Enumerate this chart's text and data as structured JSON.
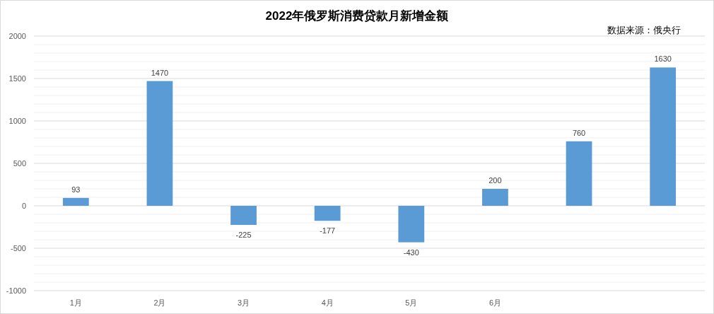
{
  "chart_data": {
    "type": "bar",
    "title": "2022年俄罗斯消费贷款月新增金额",
    "annotations": [
      "数据来源：俄央行"
    ],
    "categories": [
      "1月",
      "2月",
      "3月",
      "4月",
      "5月",
      "6月",
      null,
      null
    ],
    "values": [
      93,
      1470,
      -225,
      -177,
      -430,
      200,
      760,
      1630
    ],
    "color": "#5b9bd5",
    "data_labels": true,
    "grid": "y",
    "ylim": [
      -1000,
      2000
    ],
    "yticks": [
      -1000,
      {
        "value": -900,
        "label": null
      },
      {
        "value": -800,
        "label": null
      },
      {
        "value": -700,
        "label": null
      },
      {
        "value": -600,
        "label": null
      },
      -500,
      {
        "value": -400,
        "label": null
      },
      {
        "value": -300,
        "label": null
      },
      {
        "value": -200,
        "label": null
      },
      {
        "value": -100,
        "label": null
      },
      0,
      {
        "value": 100,
        "label": null
      },
      {
        "value": 200,
        "label": null
      },
      {
        "value": 300,
        "label": null
      },
      {
        "value": 400,
        "label": null
      },
      500,
      {
        "value": 600,
        "label": null
      },
      {
        "value": 700,
        "label": null
      },
      {
        "value": 800,
        "label": null
      },
      {
        "value": 900,
        "label": null
      },
      1000,
      {
        "value": 1100,
        "label": null
      },
      {
        "value": 1200,
        "label": null
      },
      {
        "value": 1300,
        "label": null
      },
      {
        "value": 1400,
        "label": null
      },
      1500,
      {
        "value": 1600,
        "label": null
      },
      {
        "value": 1700,
        "label": null
      },
      {
        "value": 1800,
        "label": null
      },
      {
        "value": 1900,
        "label": null
      },
      2000
    ]
  }
}
